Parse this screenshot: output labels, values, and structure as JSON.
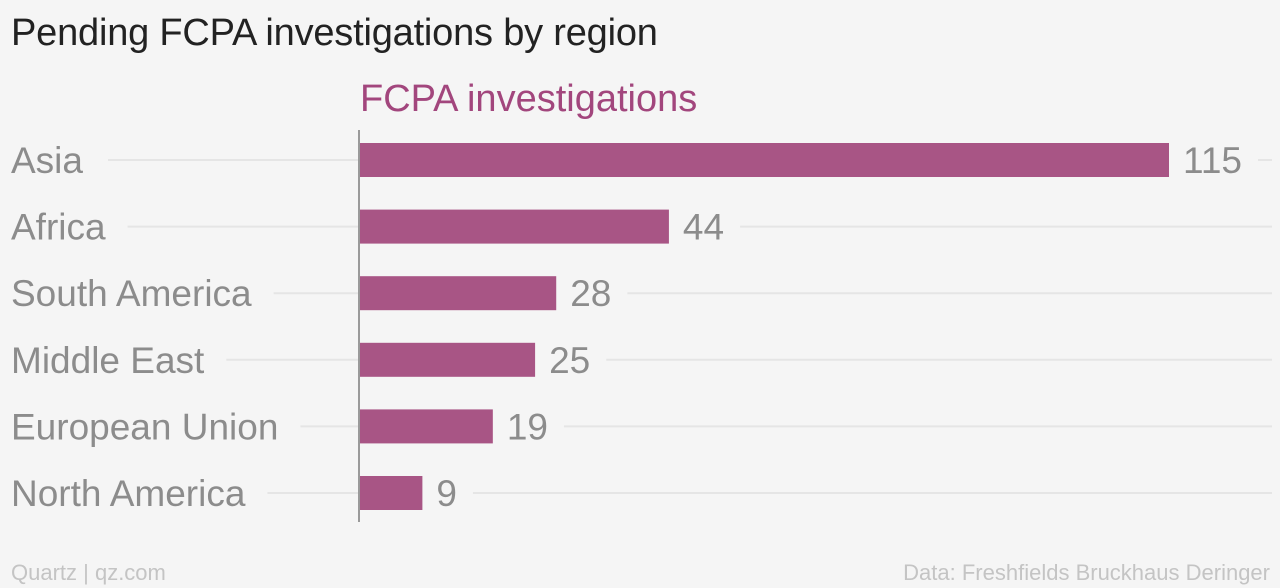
{
  "title": "Pending FCPA investigations by region",
  "footer": {
    "credit": "Quartz | qz.com",
    "source": "Data: Freshfields Bruckhaus Deringer"
  },
  "colors": {
    "bar": "#a85585",
    "series_label": "#a2467d",
    "category_text": "#8c8c8c",
    "value_text": "#8c8c8c",
    "gridline": "#e5e5e5",
    "axis": "#9a9a9a"
  },
  "chart_data": {
    "type": "bar",
    "orientation": "horizontal",
    "title": "Pending FCPA investigations by region",
    "series": [
      {
        "name": "FCPA investigations",
        "values": [
          115,
          44,
          28,
          25,
          19,
          9
        ]
      }
    ],
    "categories": [
      "Asia",
      "Africa",
      "South America",
      "Middle East",
      "European Union",
      "North America"
    ],
    "xlim": [
      0,
      115
    ],
    "grid": true,
    "data_labels": true
  }
}
